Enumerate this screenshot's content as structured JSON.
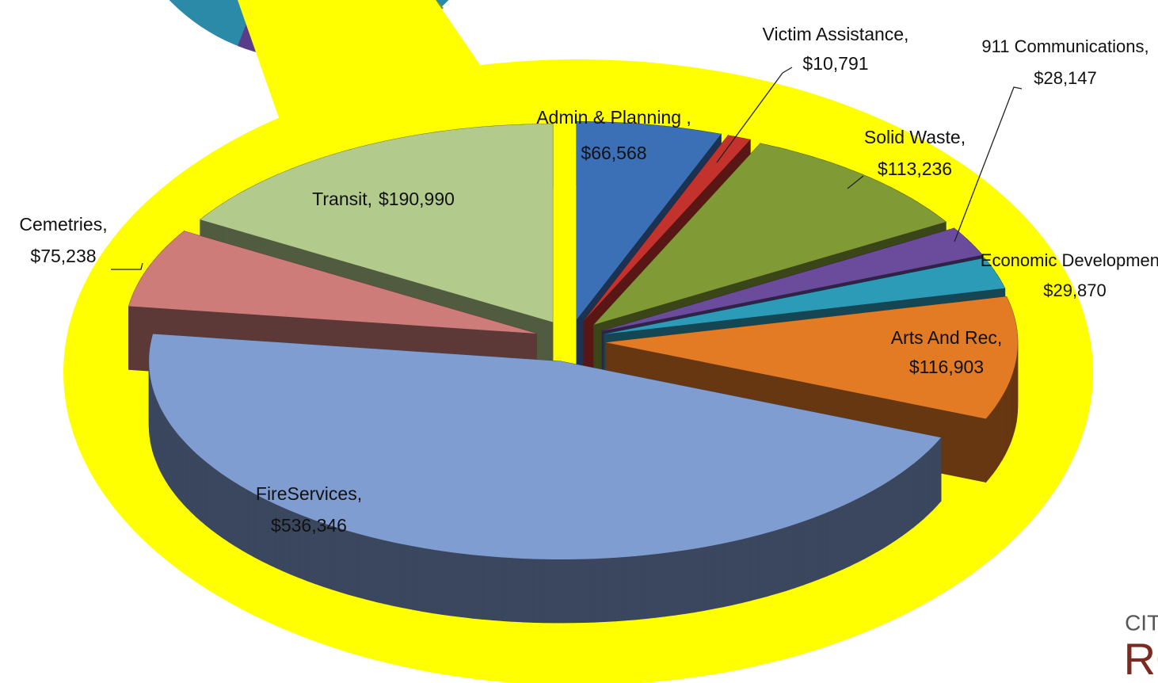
{
  "chart_data": {
    "type": "pie",
    "categories": [
      "Admin & Planning ,",
      "Victim Assistance,",
      "Solid Waste,",
      "911 Communications,",
      "Economic Development,",
      "Arts And Rec,",
      "FireServices,",
      "Cemetries,",
      "Transit,"
    ],
    "values": [
      66568,
      10791,
      113236,
      28147,
      29870,
      116903,
      536346,
      75238,
      190990
    ],
    "value_labels": [
      "$66,568",
      "$10,791",
      "$113,236",
      "$28,147",
      "$29,870",
      "$116,903",
      "$536,346",
      "$75,238",
      "$190,990"
    ],
    "colors": [
      "#3b6fb6",
      "#c3322d",
      "#809b35",
      "#6b4c9c",
      "#2c9bb8",
      "#e27b24",
      "#809dd2",
      "#cd7c7a",
      "#b2ca8c"
    ]
  },
  "logo": {
    "line1": "CITY OF",
    "line2": "ROS"
  }
}
